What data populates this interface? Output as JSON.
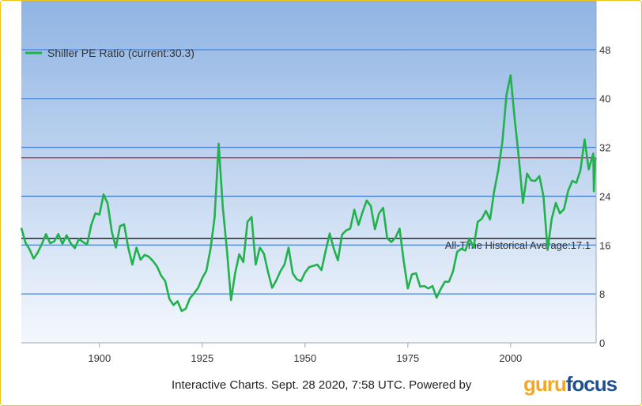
{
  "colors": {
    "series": "#22b14c",
    "current_line": "#cc2222",
    "average_line": "#000000",
    "grid": "#4a86d9",
    "plot_bg_top": "#8fb4e3",
    "plot_bg_bottom": "#f4f8fd"
  },
  "footer": {
    "text": "Interactive Charts. Sept. 28 2020, 7:58 UTC. Powered by",
    "logo_part1": "guru",
    "logo_part2": "focus"
  },
  "chart_data": {
    "type": "line",
    "title": "",
    "xlabel": "",
    "ylabel": "",
    "xlim": [
      1881,
      2020.8
    ],
    "ylim": [
      0,
      56
    ],
    "x_ticks": [
      1900,
      1925,
      1950,
      1975,
      2000
    ],
    "y_ticks": [
      0,
      8,
      16,
      24,
      32,
      40,
      48
    ],
    "y_axis_side": "right",
    "grid": true,
    "legend_position": "top-left",
    "series": [
      {
        "name": "Shiller PE Ratio (current:30.3)",
        "color": "#22b14c",
        "points": [
          [
            1881,
            18.8
          ],
          [
            1882,
            16.4
          ],
          [
            1883,
            15.3
          ],
          [
            1884,
            13.8
          ],
          [
            1885,
            14.8
          ],
          [
            1886,
            16.2
          ],
          [
            1887,
            17.8
          ],
          [
            1888,
            16.3
          ],
          [
            1889,
            16.6
          ],
          [
            1890,
            17.8
          ],
          [
            1891,
            16.2
          ],
          [
            1892,
            17.6
          ],
          [
            1893,
            16.3
          ],
          [
            1894,
            15.5
          ],
          [
            1895,
            17.0
          ],
          [
            1896,
            16.5
          ],
          [
            1897,
            16.1
          ],
          [
            1898,
            19.3
          ],
          [
            1899,
            21.2
          ],
          [
            1900,
            21.0
          ],
          [
            1901,
            24.3
          ],
          [
            1902,
            22.8
          ],
          [
            1903,
            18.2
          ],
          [
            1904,
            15.6
          ],
          [
            1905,
            19.1
          ],
          [
            1906,
            19.4
          ],
          [
            1907,
            15.6
          ],
          [
            1908,
            12.8
          ],
          [
            1909,
            15.6
          ],
          [
            1910,
            13.6
          ],
          [
            1911,
            14.4
          ],
          [
            1912,
            14.1
          ],
          [
            1913,
            13.4
          ],
          [
            1914,
            12.5
          ],
          [
            1915,
            11.0
          ],
          [
            1916,
            10.1
          ],
          [
            1917,
            7.2
          ],
          [
            1918,
            6.2
          ],
          [
            1919,
            6.8
          ],
          [
            1920,
            5.2
          ],
          [
            1921,
            5.6
          ],
          [
            1922,
            7.3
          ],
          [
            1923,
            8.1
          ],
          [
            1924,
            9.0
          ],
          [
            1925,
            10.6
          ],
          [
            1926,
            11.8
          ],
          [
            1927,
            15.3
          ],
          [
            1928,
            20.5
          ],
          [
            1929,
            32.6
          ],
          [
            1930,
            22.2
          ],
          [
            1931,
            15.2
          ],
          [
            1932,
            7.0
          ],
          [
            1933,
            11.4
          ],
          [
            1934,
            14.5
          ],
          [
            1935,
            13.2
          ],
          [
            1936,
            19.8
          ],
          [
            1937,
            20.6
          ],
          [
            1938,
            12.8
          ],
          [
            1939,
            15.6
          ],
          [
            1940,
            14.6
          ],
          [
            1941,
            11.6
          ],
          [
            1942,
            9.0
          ],
          [
            1943,
            10.2
          ],
          [
            1944,
            11.7
          ],
          [
            1945,
            12.8
          ],
          [
            1946,
            15.6
          ],
          [
            1947,
            11.4
          ],
          [
            1948,
            10.4
          ],
          [
            1949,
            10.1
          ],
          [
            1950,
            11.5
          ],
          [
            1951,
            12.4
          ],
          [
            1952,
            12.6
          ],
          [
            1953,
            12.8
          ],
          [
            1954,
            11.9
          ],
          [
            1955,
            15.0
          ],
          [
            1956,
            17.9
          ],
          [
            1957,
            15.4
          ],
          [
            1958,
            13.5
          ],
          [
            1959,
            17.7
          ],
          [
            1960,
            18.4
          ],
          [
            1961,
            18.7
          ],
          [
            1962,
            21.8
          ],
          [
            1963,
            19.3
          ],
          [
            1964,
            21.4
          ],
          [
            1965,
            23.3
          ],
          [
            1966,
            22.4
          ],
          [
            1967,
            18.6
          ],
          [
            1968,
            21.2
          ],
          [
            1969,
            22.1
          ],
          [
            1970,
            17.1
          ],
          [
            1971,
            16.5
          ],
          [
            1972,
            17.2
          ],
          [
            1973,
            18.7
          ],
          [
            1974,
            13.4
          ],
          [
            1975,
            8.9
          ],
          [
            1976,
            11.2
          ],
          [
            1977,
            11.4
          ],
          [
            1978,
            9.2
          ],
          [
            1979,
            9.3
          ],
          [
            1980,
            8.9
          ],
          [
            1981,
            9.3
          ],
          [
            1982,
            7.4
          ],
          [
            1983,
            8.8
          ],
          [
            1984,
            10.0
          ],
          [
            1985,
            10.0
          ],
          [
            1986,
            11.7
          ],
          [
            1987,
            14.9
          ],
          [
            1988,
            15.4
          ],
          [
            1989,
            15.1
          ],
          [
            1990,
            17.1
          ],
          [
            1991,
            15.6
          ],
          [
            1992,
            19.8
          ],
          [
            1993,
            20.3
          ],
          [
            1994,
            21.6
          ],
          [
            1995,
            20.2
          ],
          [
            1996,
            24.8
          ],
          [
            1997,
            28.3
          ],
          [
            1998,
            32.9
          ],
          [
            1999,
            40.6
          ],
          [
            2000,
            43.8
          ],
          [
            2001,
            36.6
          ],
          [
            2002,
            30.3
          ],
          [
            2003,
            22.9
          ],
          [
            2004,
            27.7
          ],
          [
            2005,
            26.6
          ],
          [
            2006,
            26.5
          ],
          [
            2007,
            27.3
          ],
          [
            2008,
            24.0
          ],
          [
            2009,
            15.2
          ],
          [
            2010,
            20.3
          ],
          [
            2011,
            22.9
          ],
          [
            2012,
            21.2
          ],
          [
            2013,
            21.9
          ],
          [
            2014,
            24.9
          ],
          [
            2015,
            26.5
          ],
          [
            2016,
            26.2
          ],
          [
            2017,
            28.3
          ],
          [
            2018,
            33.3
          ],
          [
            2019,
            28.4
          ],
          [
            2020.1,
            31.0
          ],
          [
            2020.25,
            24.8
          ],
          [
            2020.5,
            29.5
          ],
          [
            2020.75,
            30.3
          ]
        ]
      }
    ],
    "reference_lines": [
      {
        "name": "current",
        "y": 30.3,
        "color": "#cc2222"
      },
      {
        "name": "average",
        "y": 17.1,
        "color": "#000000",
        "label": "All-Time Historical Average:17.1"
      }
    ]
  }
}
